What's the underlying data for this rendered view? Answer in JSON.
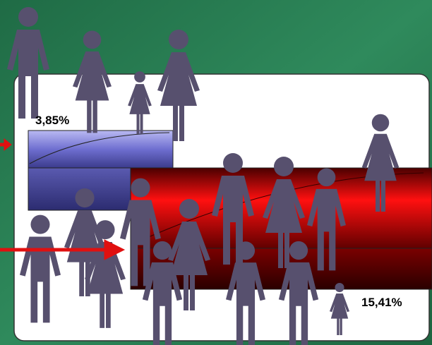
{
  "labels": [
    "3,85%",
    "15,41%"
  ]
}
